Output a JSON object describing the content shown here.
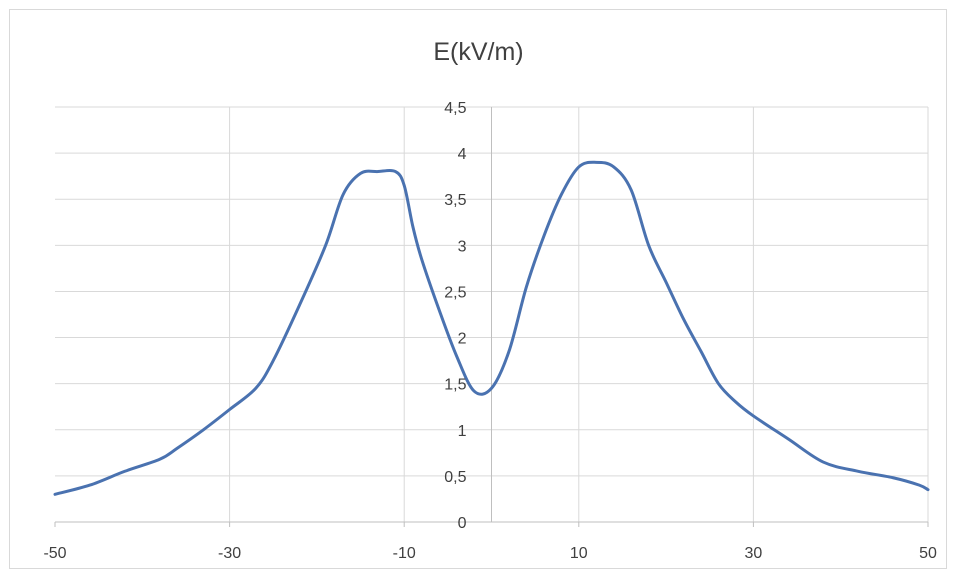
{
  "chart_data": {
    "type": "line",
    "title": "E(kV/m)",
    "xlabel": "",
    "ylabel": "",
    "xlim": [
      -50,
      50
    ],
    "ylim": [
      0,
      4.5
    ],
    "x_ticks": [
      -50,
      -30,
      -10,
      10,
      30,
      50
    ],
    "x_tick_labels": [
      "-50",
      "-30",
      "-10",
      "10",
      "30",
      "50"
    ],
    "y_ticks": [
      0,
      0.5,
      1,
      1.5,
      2,
      2.5,
      3,
      3.5,
      4,
      4.5
    ],
    "y_tick_labels": [
      "0",
      "0,5",
      "1",
      "1,5",
      "2",
      "2,5",
      "3",
      "3,5",
      "4",
      "4,5"
    ],
    "grid": true,
    "legend": "none",
    "series": [
      {
        "color": "#4a72b0",
        "x": [
          -50,
          -46,
          -42,
          -38,
          -36,
          -33,
          -30,
          -27,
          -25,
          -22,
          -19,
          -17,
          -15,
          -13,
          -11,
          -10,
          -9,
          -8,
          -6,
          -4,
          -2,
          0,
          2,
          4,
          6,
          8,
          10,
          12,
          14,
          16,
          18,
          20,
          22,
          24,
          26,
          28,
          30,
          34,
          38,
          42,
          46,
          49,
          50
        ],
        "y": [
          0.3,
          0.4,
          0.55,
          0.68,
          0.8,
          1.0,
          1.22,
          1.45,
          1.75,
          2.35,
          3.0,
          3.55,
          3.78,
          3.8,
          3.8,
          3.65,
          3.2,
          2.85,
          2.3,
          1.8,
          1.42,
          1.45,
          1.85,
          2.55,
          3.1,
          3.55,
          3.85,
          3.9,
          3.85,
          3.6,
          3.0,
          2.6,
          2.2,
          1.85,
          1.5,
          1.3,
          1.15,
          0.9,
          0.65,
          0.55,
          0.48,
          0.4,
          0.35
        ]
      }
    ]
  }
}
